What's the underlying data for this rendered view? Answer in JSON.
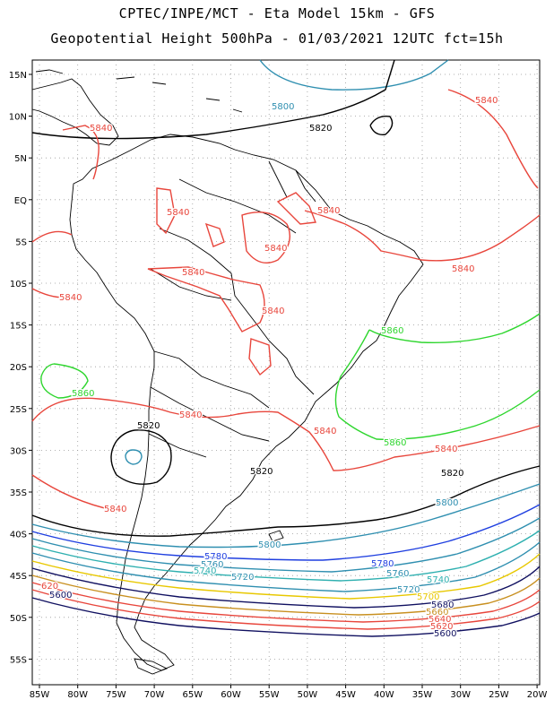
{
  "title_line1": "CPTEC/INPE/MCT  -  Eta Model 15km - GFS",
  "title_line2": "Geopotential Height 500hPa - 01/03/2021 12UTC fct=15h",
  "lat_labels": [
    "15N",
    "10N",
    "5N",
    "EQ",
    "5S",
    "10S",
    "15S",
    "20S",
    "25S",
    "30S",
    "35S",
    "40S",
    "45S",
    "50S",
    "55S"
  ],
  "lon_labels": [
    "85W",
    "80W",
    "75W",
    "70W",
    "65W",
    "60W",
    "55W",
    "50W",
    "45W",
    "40W",
    "35W",
    "30W",
    "25W",
    "20W"
  ],
  "contour_labels": [
    {
      "id": "l5800n",
      "text": "5800",
      "color": "#2f8fb0"
    },
    {
      "id": "l5820n",
      "text": "5820",
      "color": "#000000"
    },
    {
      "id": "l5840ne",
      "text": "5840",
      "color": "#e8463c"
    },
    {
      "id": "l5840nw",
      "text": "5840",
      "color": "#e8463c"
    },
    {
      "id": "l5840am1",
      "text": "5840",
      "color": "#e8463c"
    },
    {
      "id": "l5840am2",
      "text": "5840",
      "color": "#e8463c"
    },
    {
      "id": "l5840am3",
      "text": "5840",
      "color": "#e8463c"
    },
    {
      "id": "l5840am4",
      "text": "5840",
      "color": "#e8463c"
    },
    {
      "id": "l5840w",
      "text": "5840",
      "color": "#e8463c"
    },
    {
      "id": "l5840bol",
      "text": "5840",
      "color": "#e8463c"
    },
    {
      "id": "l5840e",
      "text": "5840",
      "color": "#e8463c"
    },
    {
      "id": "l5860e",
      "text": "5860",
      "color": "#2fd62f"
    },
    {
      "id": "l5860w",
      "text": "5860",
      "color": "#2fd62f"
    },
    {
      "id": "l5860s",
      "text": "5860",
      "color": "#2fd62f"
    },
    {
      "id": "l5840arg",
      "text": "5840",
      "color": "#e8463c"
    },
    {
      "id": "l5840sbr",
      "text": "5840",
      "color": "#e8463c"
    },
    {
      "id": "l5820low",
      "text": "5820",
      "color": "#000000"
    },
    {
      "id": "l5820c",
      "text": "5820",
      "color": "#000000"
    },
    {
      "id": "l5840se",
      "text": "5840",
      "color": "#e8463c"
    },
    {
      "id": "l5840sw",
      "text": "5840",
      "color": "#e8463c"
    },
    {
      "id": "l5820e",
      "text": "5820",
      "color": "#000000"
    },
    {
      "id": "l5800e",
      "text": "5800",
      "color": "#2f8fb0"
    },
    {
      "id": "l5800m",
      "text": "5800",
      "color": "#2f8fb0"
    },
    {
      "id": "l5780w",
      "text": "5780",
      "color": "#1f3fe0"
    },
    {
      "id": "l5760w",
      "text": "5760",
      "color": "#2f8fb0"
    },
    {
      "id": "l5740w",
      "text": "5740",
      "color": "#2fb0b0"
    },
    {
      "id": "l5720m",
      "text": "5720",
      "color": "#2f8fb0"
    },
    {
      "id": "l5780e",
      "text": "5780",
      "color": "#1f3fe0"
    },
    {
      "id": "l5760e",
      "text": "5760",
      "color": "#2f8fb0"
    },
    {
      "id": "l5740e",
      "text": "5740",
      "color": "#2fb0b0"
    },
    {
      "id": "l5720e",
      "text": "5720",
      "color": "#2f8fb0"
    },
    {
      "id": "l5700e",
      "text": "5700",
      "color": "#e8c800"
    },
    {
      "id": "l5680e",
      "text": "5680",
      "color": "#101060"
    },
    {
      "id": "l5660e",
      "text": "5660",
      "color": "#c89020"
    },
    {
      "id": "l5640e",
      "text": "5640",
      "color": "#e8463c"
    },
    {
      "id": "l5620e",
      "text": "5620",
      "color": "#e8463c"
    },
    {
      "id": "l5600e",
      "text": "5600",
      "color": "#101060"
    },
    {
      "id": "l620w",
      "text": "620",
      "color": "#e8463c"
    },
    {
      "id": "l5600w",
      "text": "5600",
      "color": "#101060"
    }
  ]
}
